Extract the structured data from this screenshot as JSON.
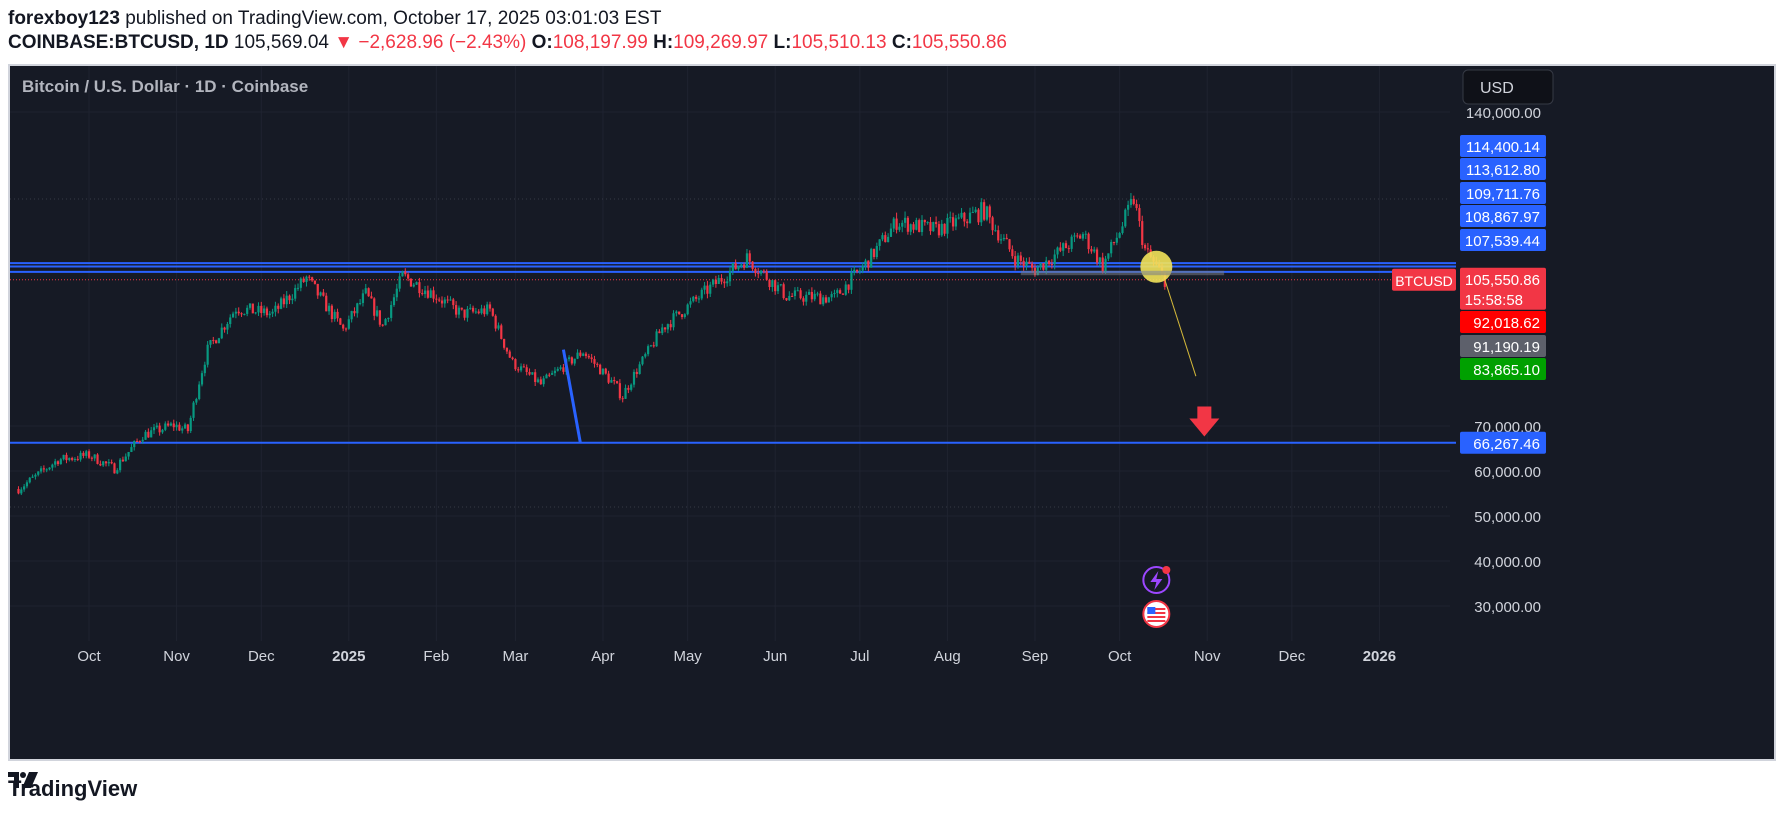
{
  "header": {
    "author": "forexboy123",
    "published": "published on TradingView.com, October 17, 2025 03:01:03 EST",
    "symbol": "COINBASE:BTCUSD, 1D",
    "last": "105,569.04",
    "change": "▼ −2,628.96 (−2.43%)",
    "o_label": "O:",
    "o": "108,197.99",
    "h_label": "H:",
    "h": "109,269.97",
    "l_label": "L:",
    "l": "105,510.13",
    "c_label": "C:",
    "c": "105,550.86"
  },
  "chart_title": "Bitcoin / U.S. Dollar · 1D · Coinbase",
  "currency_button": "USD",
  "footer": {
    "brand": "TradingView",
    "logo_icon": "tradingview-logo-icon"
  },
  "colors": {
    "up": "#089981",
    "down": "#f23645",
    "line": "#2962ff",
    "bg": "#161a25",
    "axis_text": "#d1d4dc"
  },
  "chart_data": {
    "type": "candlestick",
    "title": "Bitcoin / U.S. Dollar · 1D · Coinbase",
    "xlabel": "",
    "ylabel": "",
    "x_ticks": [
      "Oct",
      "Nov",
      "Dec",
      "2025",
      "Feb",
      "Mar",
      "Apr",
      "May",
      "Jun",
      "Jul",
      "Aug",
      "Sep",
      "Oct",
      "Nov",
      "Dec",
      "2026"
    ],
    "x_tick_dates": [
      "2024-10-01",
      "2024-11-01",
      "2024-12-01",
      "2025-01-01",
      "2025-02-01",
      "2025-03-01",
      "2025-04-01",
      "2025-05-01",
      "2025-06-01",
      "2025-07-01",
      "2025-08-01",
      "2025-09-01",
      "2025-10-01",
      "2025-11-01",
      "2025-12-01",
      "2026-01-01"
    ],
    "y_ticks": [
      140000,
      70000,
      60000,
      50000,
      40000,
      30000
    ],
    "y_tick_labels": [
      "140,000.00",
      "70,000.00",
      "60,000.00",
      "50,000.00",
      "40,000.00",
      "30,000.00"
    ],
    "ylim": [
      22000,
      147000
    ],
    "xlim": [
      "2024-09-03",
      "2026-01-26"
    ],
    "grid": true,
    "series": [
      {
        "x": "2024-09-06",
        "close": 56000
      },
      {
        "x": "2024-09-20",
        "close": 62500
      },
      {
        "x": "2024-10-01",
        "close": 63500
      },
      {
        "x": "2024-10-10",
        "close": 60500
      },
      {
        "x": "2024-10-20",
        "close": 68000
      },
      {
        "x": "2024-10-31",
        "close": 70200
      },
      {
        "x": "2024-11-05",
        "close": 69000
      },
      {
        "x": "2024-11-12",
        "close": 88000
      },
      {
        "x": "2024-11-22",
        "close": 98500
      },
      {
        "x": "2024-12-05",
        "close": 97000
      },
      {
        "x": "2024-12-17",
        "close": 106000
      },
      {
        "x": "2024-12-30",
        "close": 93000
      },
      {
        "x": "2025-01-07",
        "close": 102000
      },
      {
        "x": "2025-01-13",
        "close": 94000
      },
      {
        "x": "2025-01-20",
        "close": 106500
      },
      {
        "x": "2025-01-31",
        "close": 102000
      },
      {
        "x": "2025-02-10",
        "close": 97000
      },
      {
        "x": "2025-02-20",
        "close": 98000
      },
      {
        "x": "2025-02-28",
        "close": 84500
      },
      {
        "x": "2025-03-10",
        "close": 79000
      },
      {
        "x": "2025-03-25",
        "close": 87500
      },
      {
        "x": "2025-04-08",
        "close": 76500
      },
      {
        "x": "2025-04-22",
        "close": 93500
      },
      {
        "x": "2025-05-08",
        "close": 103000
      },
      {
        "x": "2025-05-22",
        "close": 111000
      },
      {
        "x": "2025-06-05",
        "close": 101500
      },
      {
        "x": "2025-06-22",
        "close": 101000
      },
      {
        "x": "2025-07-03",
        "close": 109500
      },
      {
        "x": "2025-07-14",
        "close": 120000
      },
      {
        "x": "2025-07-28",
        "close": 118000
      },
      {
        "x": "2025-08-14",
        "close": 122500
      },
      {
        "x": "2025-08-25",
        "close": 111000
      },
      {
        "x": "2025-09-01",
        "close": 108000
      },
      {
        "x": "2025-09-18",
        "close": 117000
      },
      {
        "x": "2025-09-25",
        "close": 109000
      },
      {
        "x": "2025-10-06",
        "close": 125000
      },
      {
        "x": "2025-10-10",
        "close": 113000
      },
      {
        "x": "2025-10-17",
        "close": 105550.86
      }
    ],
    "horizontal_levels": [
      {
        "value": 114400.14,
        "label": "114,400.14",
        "color": "#2962ff",
        "line": false
      },
      {
        "value": 113612.8,
        "label": "113,612.80",
        "color": "#2962ff",
        "line": false
      },
      {
        "value": 109711.76,
        "label": "109,711.76",
        "color": "#2962ff",
        "line": true
      },
      {
        "value": 108867.97,
        "label": "108,867.97",
        "color": "#2962ff",
        "line": true
      },
      {
        "value": 107539.44,
        "label": "107,539.44",
        "color": "#2962ff",
        "line": true
      },
      {
        "value": 66267.46,
        "label": "66,267.46",
        "color": "#2962ff",
        "line": true
      }
    ],
    "current_price": {
      "symbol": "BTCUSD",
      "value": 105550.86,
      "label": "105,550.86",
      "countdown": "15:58:58",
      "color": "#f23645"
    },
    "price_tags": [
      {
        "value": 92018.62,
        "label": "92,018.62",
        "color": "#ff0000"
      },
      {
        "value": 91190.19,
        "label": "91,190.19",
        "color": "#5d606b"
      },
      {
        "value": 83865.1,
        "label": "83,865.10",
        "color": "#00a000"
      }
    ],
    "annotations": [
      {
        "kind": "trend-line",
        "from": [
          "2025-03-18",
          88000
        ],
        "to": [
          "2025-03-24",
          66267
        ],
        "color": "#2962ff"
      },
      {
        "kind": "projection-line",
        "from": [
          "2025-10-17",
          105550
        ],
        "to": [
          "2025-10-28",
          81000
        ],
        "color": "#d4b83a"
      },
      {
        "kind": "down-arrow",
        "at": [
          "2025-10-31",
          69000
        ],
        "color": "#f23645"
      },
      {
        "kind": "highlight-circle",
        "at": [
          "2025-10-14",
          108800
        ],
        "color": "#f2e35a"
      },
      {
        "kind": "rectangle",
        "from": [
          "2025-08-27",
          107800
        ],
        "to": [
          "2025-11-07",
          106700
        ],
        "color": "#787b86"
      }
    ],
    "event_icons": [
      "lightning-event-icon",
      "us-flag-event-icon"
    ]
  }
}
